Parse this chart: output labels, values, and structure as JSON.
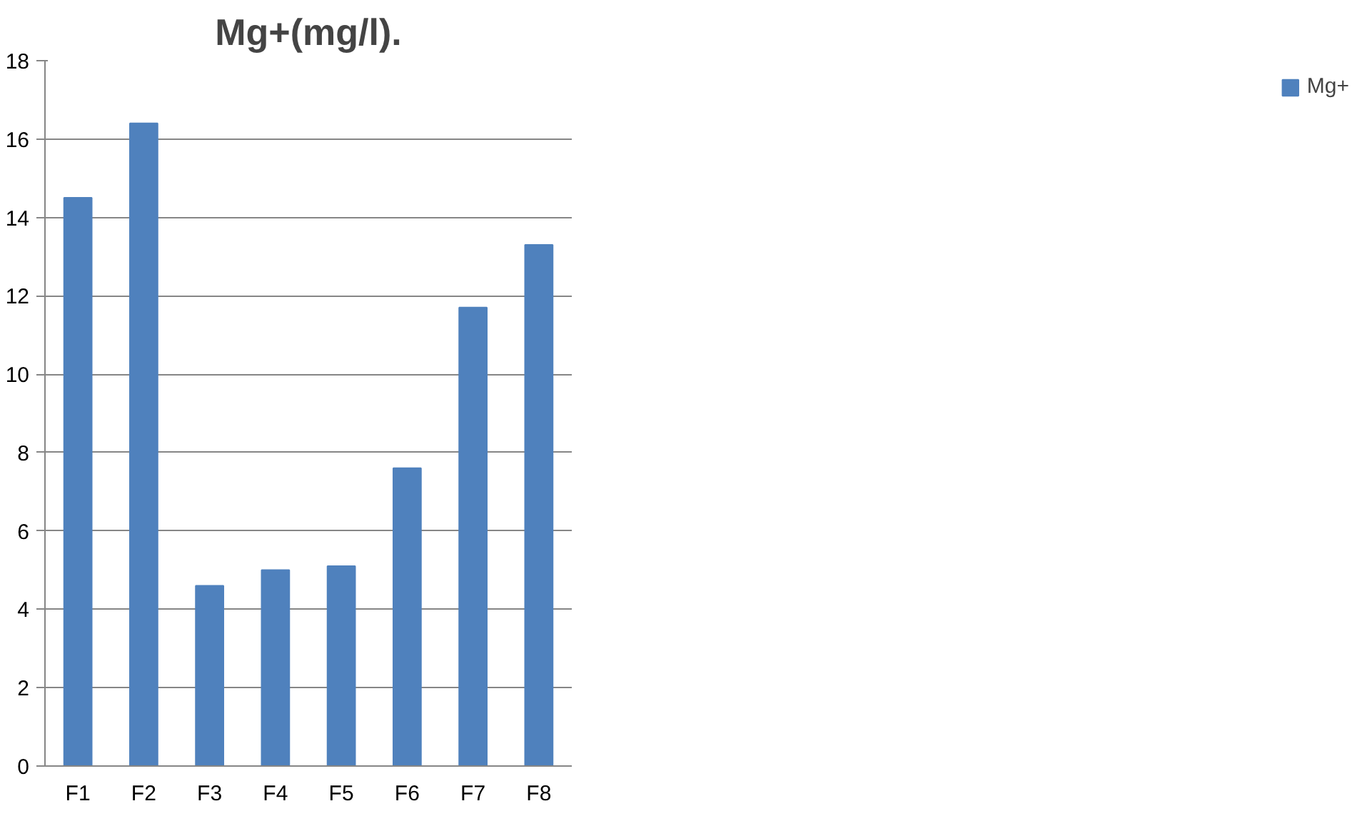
{
  "chart_data": {
    "type": "bar",
    "title": "Mg+(mg/l).",
    "categories": [
      "F1",
      "F2",
      "F3",
      "F4",
      "F5",
      "F6",
      "F7",
      "F8"
    ],
    "series": [
      {
        "name": "Mg+",
        "color": "#4f81bd",
        "values": [
          14.5,
          16.4,
          4.6,
          5.0,
          5.1,
          7.6,
          11.7,
          13.3
        ]
      }
    ],
    "ylim": [
      0,
      18
    ],
    "yticks": [
      0,
      2,
      4,
      6,
      8,
      10,
      12,
      14,
      16,
      18
    ],
    "grid": "y",
    "legend": "right"
  }
}
